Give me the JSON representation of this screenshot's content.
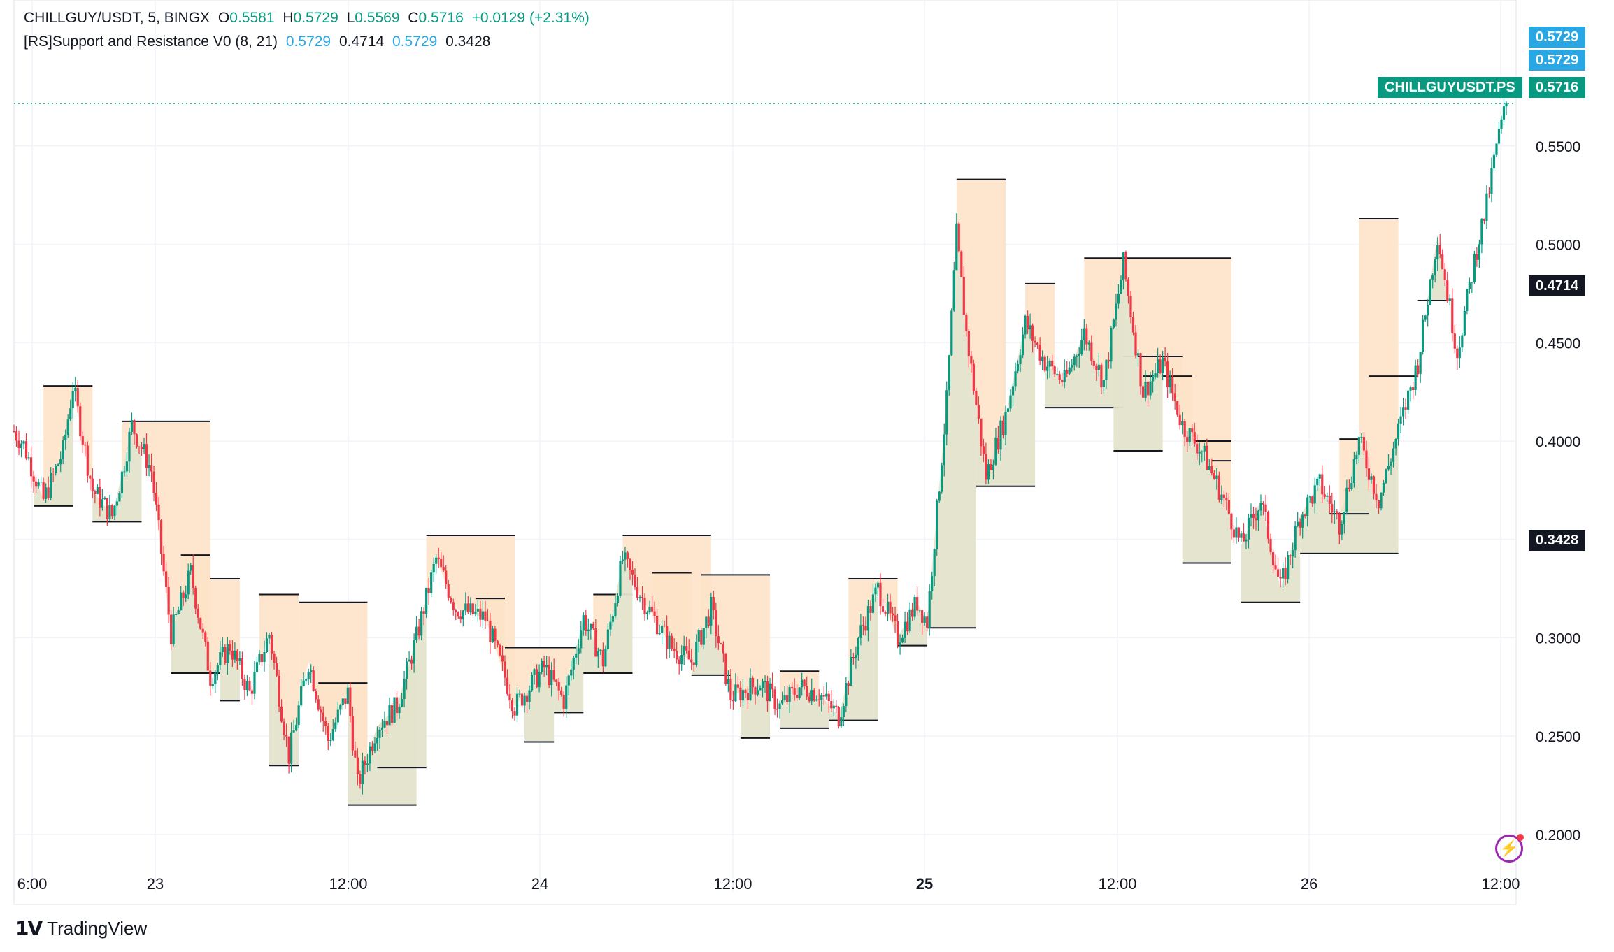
{
  "header": {
    "symbol": "CHILLGUY/USDT, 5, BINGX",
    "open_label": "O",
    "open": "0.5581",
    "high_label": "H",
    "high": "0.5729",
    "low_label": "L",
    "low": "0.5569",
    "close_label": "C",
    "close": "0.5716",
    "change": "+0.0129 (+2.31%)"
  },
  "indicator": {
    "name": "[RS]Support and Resistance V0 (8, 21)",
    "v1": "0.5729",
    "v2": "0.4714",
    "v3": "0.5729",
    "v4": "0.3428"
  },
  "badges": {
    "hi1": "0.5729",
    "hi2": "0.5729",
    "ticker": "CHILLGUYUSDT.PS",
    "last": "0.5716",
    "res": "0.4714",
    "sup": "0.3428"
  },
  "colors": {
    "up": "#089981",
    "down": "#f23645",
    "last_price": "#089981",
    "indicator_blue": "#2aa7e2",
    "resistance_fill": "#fde3c8",
    "support_fill": "#e4e3cb",
    "level_line": "#131722",
    "grid": "#f0f3fa"
  },
  "brand": {
    "logo_text": "TradingView",
    "logo_icon": "tradingview-logo-icon"
  },
  "icons": {
    "alert": "lightning-alert-icon"
  },
  "chart_data": {
    "type": "candlestick",
    "interval": "5",
    "ylim": [
      0.185,
      0.61
    ],
    "y_ticks": [
      "0.2000",
      "0.2500",
      "0.3000",
      "0.3500",
      "0.4000",
      "0.4500",
      "0.5000",
      "0.5500"
    ],
    "x_ticks": [
      "6:00",
      "23",
      "12:00",
      "24",
      "12:00",
      "25",
      "12:00",
      "26",
      "12:00"
    ],
    "bold_x_ticks": [
      "25"
    ],
    "last_price": 0.5716,
    "close_path": [
      [
        0,
        0.405
      ],
      [
        1,
        0.398
      ],
      [
        3,
        0.37
      ],
      [
        5,
        0.395
      ],
      [
        6,
        0.428
      ],
      [
        8,
        0.375
      ],
      [
        10,
        0.362
      ],
      [
        11,
        0.383
      ],
      [
        12,
        0.408
      ],
      [
        14,
        0.385
      ],
      [
        16,
        0.302
      ],
      [
        18,
        0.333
      ],
      [
        20,
        0.28
      ],
      [
        22,
        0.296
      ],
      [
        24,
        0.272
      ],
      [
        26,
        0.302
      ],
      [
        28,
        0.24
      ],
      [
        30,
        0.288
      ],
      [
        32,
        0.248
      ],
      [
        34,
        0.272
      ],
      [
        35,
        0.225
      ],
      [
        37,
        0.255
      ],
      [
        39,
        0.265
      ],
      [
        41,
        0.3
      ],
      [
        43,
        0.34
      ],
      [
        45,
        0.315
      ],
      [
        48,
        0.31
      ],
      [
        51,
        0.265
      ],
      [
        54,
        0.285
      ],
      [
        56,
        0.268
      ],
      [
        58,
        0.31
      ],
      [
        60,
        0.288
      ],
      [
        62,
        0.34
      ],
      [
        64,
        0.32
      ],
      [
        67,
        0.295
      ],
      [
        69,
        0.288
      ],
      [
        71,
        0.315
      ],
      [
        73,
        0.27
      ],
      [
        76,
        0.277
      ],
      [
        78,
        0.265
      ],
      [
        80,
        0.275
      ],
      [
        82,
        0.272
      ],
      [
        84,
        0.26
      ],
      [
        86,
        0.3
      ],
      [
        88,
        0.325
      ],
      [
        90,
        0.3
      ],
      [
        92,
        0.318
      ],
      [
        93,
        0.308
      ],
      [
        95,
        0.42
      ],
      [
        96,
        0.505
      ],
      [
        97,
        0.455
      ],
      [
        99,
        0.382
      ],
      [
        101,
        0.413
      ],
      [
        103,
        0.46
      ],
      [
        105,
        0.44
      ],
      [
        107,
        0.43
      ],
      [
        109,
        0.455
      ],
      [
        111,
        0.43
      ],
      [
        113,
        0.49
      ],
      [
        115,
        0.425
      ],
      [
        117,
        0.44
      ],
      [
        119,
        0.408
      ],
      [
        121,
        0.395
      ],
      [
        123,
        0.373
      ],
      [
        125,
        0.347
      ],
      [
        127,
        0.37
      ],
      [
        129,
        0.325
      ],
      [
        131,
        0.362
      ],
      [
        133,
        0.378
      ],
      [
        135,
        0.358
      ],
      [
        137,
        0.4
      ],
      [
        139,
        0.37
      ],
      [
        141,
        0.405
      ],
      [
        143,
        0.44
      ],
      [
        145,
        0.505
      ],
      [
        147,
        0.445
      ],
      [
        149,
        0.498
      ],
      [
        150,
        0.52
      ],
      [
        151,
        0.55
      ],
      [
        152,
        0.5716
      ]
    ],
    "resistance_levels": [
      {
        "x": [
          3,
          8
        ],
        "y": 0.428
      },
      {
        "x": [
          11,
          20
        ],
        "y": 0.41
      },
      {
        "x": [
          17,
          20
        ],
        "y": 0.342
      },
      {
        "x": [
          20,
          23
        ],
        "y": 0.33
      },
      {
        "x": [
          25,
          29
        ],
        "y": 0.322
      },
      {
        "x": [
          29,
          36
        ],
        "y": 0.318
      },
      {
        "x": [
          31,
          36
        ],
        "y": 0.277
      },
      {
        "x": [
          42,
          51
        ],
        "y": 0.352
      },
      {
        "x": [
          47,
          50
        ],
        "y": 0.32
      },
      {
        "x": [
          50,
          58
        ],
        "y": 0.295
      },
      {
        "x": [
          59,
          63
        ],
        "y": 0.322
      },
      {
        "x": [
          62,
          71
        ],
        "y": 0.352
      },
      {
        "x": [
          65,
          69
        ],
        "y": 0.333
      },
      {
        "x": [
          70,
          77
        ],
        "y": 0.332
      },
      {
        "x": [
          78,
          82
        ],
        "y": 0.283
      },
      {
        "x": [
          85,
          90
        ],
        "y": 0.33
      },
      {
        "x": [
          96,
          101
        ],
        "y": 0.533
      },
      {
        "x": [
          103,
          106
        ],
        "y": 0.48
      },
      {
        "x": [
          109,
          124
        ],
        "y": 0.493
      },
      {
        "x": [
          112,
          119
        ],
        "y": 0.443
      },
      {
        "x": [
          115,
          120
        ],
        "y": 0.433
      },
      {
        "x": [
          120,
          124
        ],
        "y": 0.4
      },
      {
        "x": [
          122,
          124
        ],
        "y": 0.39
      },
      {
        "x": [
          135,
          137
        ],
        "y": 0.401
      },
      {
        "x": [
          137,
          141
        ],
        "y": 0.513
      }
    ],
    "support_levels": [
      {
        "x": [
          2,
          6
        ],
        "y": 0.367
      },
      {
        "x": [
          8,
          13
        ],
        "y": 0.359
      },
      {
        "x": [
          16,
          21
        ],
        "y": 0.282
      },
      {
        "x": [
          21,
          23
        ],
        "y": 0.268
      },
      {
        "x": [
          26,
          29
        ],
        "y": 0.235
      },
      {
        "x": [
          34,
          41
        ],
        "y": 0.215
      },
      {
        "x": [
          37,
          42
        ],
        "y": 0.234
      },
      {
        "x": [
          52,
          55
        ],
        "y": 0.247
      },
      {
        "x": [
          55,
          58
        ],
        "y": 0.262
      },
      {
        "x": [
          58,
          63
        ],
        "y": 0.282
      },
      {
        "x": [
          69,
          73
        ],
        "y": 0.281
      },
      {
        "x": [
          74,
          77
        ],
        "y": 0.249
      },
      {
        "x": [
          78,
          83
        ],
        "y": 0.254
      },
      {
        "x": [
          83,
          88
        ],
        "y": 0.258
      },
      {
        "x": [
          90,
          93
        ],
        "y": 0.296
      },
      {
        "x": [
          93,
          98
        ],
        "y": 0.305
      },
      {
        "x": [
          98,
          104
        ],
        "y": 0.377
      },
      {
        "x": [
          105,
          113
        ],
        "y": 0.417
      },
      {
        "x": [
          112,
          117
        ],
        "y": 0.395
      },
      {
        "x": [
          119,
          124
        ],
        "y": 0.338
      },
      {
        "x": [
          125,
          131
        ],
        "y": 0.318
      },
      {
        "x": [
          131,
          141
        ],
        "y": 0.3428
      },
      {
        "x": [
          134,
          138
        ],
        "y": 0.363
      },
      {
        "x": [
          138,
          143
        ],
        "y": 0.433
      },
      {
        "x": [
          143,
          146
        ],
        "y": 0.4714
      }
    ]
  }
}
